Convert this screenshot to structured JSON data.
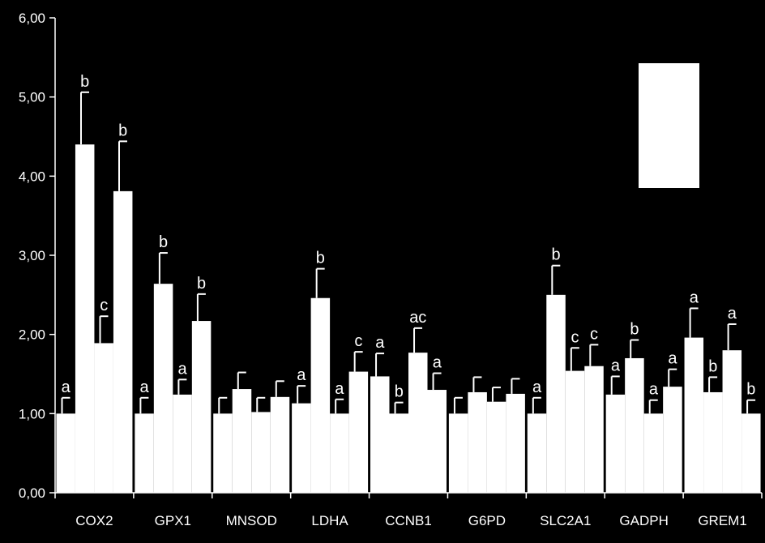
{
  "chart_data": {
    "type": "bar",
    "title": "",
    "xlabel": "",
    "ylabel": "",
    "ylim": [
      0,
      6
    ],
    "yticks": [
      "0,00",
      "1,00",
      "2,00",
      "3,00",
      "4,00",
      "5,00",
      "6,00"
    ],
    "grid": false,
    "colors": {
      "background": "#000000",
      "bars": "#ffffff",
      "axes": "#ffffff",
      "text": "#ffffff"
    },
    "categories": [
      "COX2",
      "GPX1",
      "MNSOD",
      "LDHA",
      "CCNB1",
      "G6PD",
      "SLC2A1",
      "GADPH",
      "GREM1"
    ],
    "series": [
      {
        "values": [
          1.0,
          1.0,
          1.0,
          1.13,
          1.47,
          1.0,
          1.0,
          1.24,
          1.96
        ],
        "errors": [
          0.2,
          0.2,
          0.2,
          0.22,
          0.29,
          0.2,
          0.2,
          0.23,
          0.37
        ],
        "labels": [
          "a",
          "a",
          "",
          "a",
          "a",
          "",
          "a",
          "a",
          "a"
        ]
      },
      {
        "values": [
          4.4,
          2.64,
          1.31,
          2.46,
          1.0,
          1.27,
          2.5,
          1.7,
          1.27
        ],
        "errors": [
          0.66,
          0.39,
          0.21,
          0.37,
          0.14,
          0.19,
          0.37,
          0.23,
          0.19
        ],
        "labels": [
          "b",
          "b",
          "",
          "b",
          "b",
          "",
          "b",
          "b",
          "b"
        ]
      },
      {
        "values": [
          1.89,
          1.24,
          1.02,
          1.0,
          1.77,
          1.15,
          1.54,
          1.0,
          1.8
        ],
        "errors": [
          0.34,
          0.19,
          0.18,
          0.18,
          0.31,
          0.18,
          0.29,
          0.17,
          0.33
        ],
        "labels": [
          "c",
          "a",
          "",
          "a",
          "ac",
          "",
          "c",
          "a",
          "a"
        ]
      },
      {
        "values": [
          3.81,
          2.17,
          1.21,
          1.53,
          1.3,
          1.25,
          1.6,
          1.34,
          1.0
        ],
        "errors": [
          0.63,
          0.34,
          0.2,
          0.25,
          0.21,
          0.19,
          0.27,
          0.22,
          0.17
        ],
        "labels": [
          "b",
          "b",
          "",
          "c",
          "a",
          "",
          "c",
          "a",
          "b"
        ]
      }
    ],
    "legend": {
      "placement": "top-right",
      "entries": []
    }
  }
}
